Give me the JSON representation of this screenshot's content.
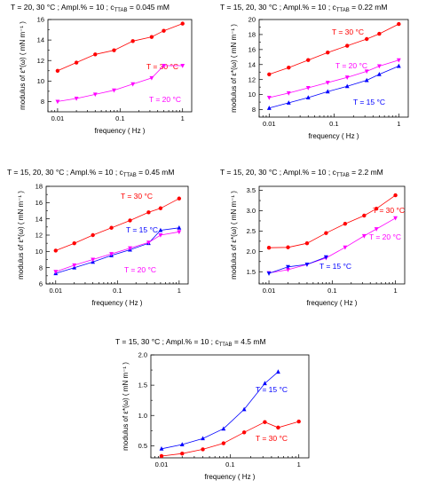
{
  "chart_data": [
    {
      "type": "line",
      "title": "T = 20, 30 °C ;    Ampl.% = 10 ;   c",
      "title_sub": "TTAB",
      "title_tail": " = 0.045 mM",
      "xlabel": "frequency  ( Hz )",
      "ylabel": "modulus of ε*(ω)  ( mN m⁻¹ )",
      "xscale": "log",
      "xlim": [
        0.007,
        1.4
      ],
      "ylim": [
        7,
        16
      ],
      "xticks": [
        0.01,
        0.1,
        1
      ],
      "xtick_labels": [
        "0.01",
        "0.1",
        "1"
      ],
      "yticks": [
        8,
        10,
        12,
        14,
        16
      ],
      "ytick_labels": [
        "8",
        "10",
        "12",
        "14",
        "16"
      ],
      "series": [
        {
          "name": "T = 30 °C",
          "color": "#ff0000",
          "marker": "circle",
          "x": [
            0.01,
            0.02,
            0.04,
            0.08,
            0.16,
            0.32,
            0.5,
            1.0
          ],
          "y": [
            11.0,
            11.8,
            12.6,
            13.0,
            13.9,
            14.3,
            14.9,
            15.6
          ]
        },
        {
          "name": "T = 20 °C",
          "color": "#ff00ff",
          "marker": "triangle-down",
          "x": [
            0.01,
            0.02,
            0.04,
            0.08,
            0.16,
            0.32,
            0.5,
            1.0
          ],
          "y": [
            8.0,
            8.3,
            8.7,
            9.1,
            9.7,
            10.3,
            11.5,
            11.5
          ]
        }
      ]
    },
    {
      "type": "line",
      "title": "T = 15, 20, 30 °C ;    Ampl.% = 10 ;    c",
      "title_sub": "TTAB",
      "title_tail": " = 0.22 mM",
      "xlabel": "frequency  ( Hz )",
      "ylabel": "modulus of ε*(ω)  ( mN m⁻¹ )",
      "xscale": "log",
      "xlim": [
        0.007,
        1.4
      ],
      "ylim": [
        7,
        20
      ],
      "xticks": [
        0.01,
        0.1,
        1
      ],
      "xtick_labels": [
        "0.01",
        "0.1",
        "1"
      ],
      "yticks": [
        8,
        10,
        12,
        14,
        16,
        18,
        20
      ],
      "ytick_labels": [
        "8",
        "10",
        "12",
        "14",
        "16",
        "18",
        "20"
      ],
      "series": [
        {
          "name": "T = 30 °C",
          "color": "#ff0000",
          "marker": "circle",
          "x": [
            0.01,
            0.02,
            0.04,
            0.08,
            0.16,
            0.32,
            0.5,
            1.0
          ],
          "y": [
            12.7,
            13.6,
            14.6,
            15.6,
            16.5,
            17.4,
            18.1,
            19.4
          ]
        },
        {
          "name": "T = 20 °C",
          "color": "#ff00ff",
          "marker": "triangle-down",
          "x": [
            0.01,
            0.02,
            0.04,
            0.08,
            0.16,
            0.32,
            0.5,
            1.0
          ],
          "y": [
            9.6,
            10.2,
            10.9,
            11.6,
            12.3,
            13.1,
            13.8,
            14.6
          ]
        },
        {
          "name": "T = 15 °C",
          "color": "#0000ff",
          "marker": "triangle-up",
          "x": [
            0.01,
            0.02,
            0.04,
            0.08,
            0.16,
            0.32,
            0.5,
            1.0
          ],
          "y": [
            8.2,
            8.9,
            9.6,
            10.4,
            11.1,
            11.9,
            12.7,
            13.8
          ]
        }
      ]
    },
    {
      "type": "line",
      "title": "T = 15, 20, 30 °C ;    Ampl.% = 10 ;    c",
      "title_sub": "TTAB",
      "title_tail": " = 0.45 mM",
      "xlabel": "frequency  ( Hz )",
      "ylabel": "modulus of ε*(ω)  ( mN m⁻¹ )",
      "xscale": "log",
      "xlim": [
        0.007,
        1.4
      ],
      "ylim": [
        6,
        18
      ],
      "xticks": [
        0.01,
        0.1,
        1
      ],
      "xtick_labels": [
        "0.01",
        "0.1",
        "1"
      ],
      "yticks": [
        6,
        8,
        10,
        12,
        14,
        16,
        18
      ],
      "ytick_labels": [
        "6",
        "8",
        "10",
        "12",
        "14",
        "16",
        "18"
      ],
      "series": [
        {
          "name": "T = 30 °C",
          "color": "#ff0000",
          "marker": "circle",
          "x": [
            0.01,
            0.02,
            0.04,
            0.08,
            0.16,
            0.32,
            0.5,
            1.0
          ],
          "y": [
            10.1,
            11.0,
            12.0,
            12.9,
            13.8,
            14.8,
            15.3,
            16.5
          ]
        },
        {
          "name": "T = 15 °C",
          "color": "#0000ff",
          "marker": "triangle-up",
          "x": [
            0.01,
            0.02,
            0.04,
            0.08,
            0.16,
            0.32,
            0.5,
            1.0
          ],
          "y": [
            7.3,
            8.0,
            8.7,
            9.5,
            10.2,
            11.0,
            12.6,
            12.9
          ]
        },
        {
          "name": "T = 20 °C",
          "color": "#ff00ff",
          "marker": "triangle-down",
          "x": [
            0.01,
            0.02,
            0.04,
            0.08,
            0.16,
            0.32,
            0.5,
            1.0
          ],
          "y": [
            7.5,
            8.3,
            9.0,
            9.7,
            10.4,
            11.1,
            12.0,
            12.4
          ]
        }
      ]
    },
    {
      "type": "line",
      "title": "T = 15, 20, 30 °C ;    Ampl.% = 10 ;    c",
      "title_sub": "TTAB",
      "title_tail": " = 2.2 mM",
      "xlabel": "frequency  ( Hz )",
      "ylabel": "modulus of ε*(ω)  ( mN m⁻¹ )",
      "xscale": "log",
      "xlim": [
        0.007,
        1.4
      ],
      "ylim": [
        1.2,
        3.6
      ],
      "xticks": [
        0.01,
        0.1,
        1
      ],
      "xtick_labels": [
        "0.01",
        "0.1",
        "1"
      ],
      "yticks": [
        1.5,
        2.0,
        2.5,
        3.0,
        3.5
      ],
      "ytick_labels": [
        "1.5",
        "2.0",
        "2.5",
        "3.0",
        "3.5"
      ],
      "series": [
        {
          "name": "T = 30 °C",
          "color": "#ff0000",
          "marker": "circle",
          "x": [
            0.01,
            0.02,
            0.04,
            0.08,
            0.16,
            0.32,
            0.5,
            1.0
          ],
          "y": [
            2.09,
            2.1,
            2.2,
            2.45,
            2.68,
            2.88,
            3.05,
            3.38
          ]
        },
        {
          "name": "T = 20 °C",
          "color": "#ff00ff",
          "marker": "triangle-down",
          "x": [
            0.01,
            0.02,
            0.04,
            0.08,
            0.16,
            0.32,
            0.5,
            1.0
          ],
          "y": [
            1.47,
            1.55,
            1.68,
            1.84,
            2.1,
            2.38,
            2.55,
            2.82
          ]
        },
        {
          "name": "T = 15 °C",
          "color": "#0000ff",
          "marker": "triangle-down",
          "x": [
            0.01,
            0.02,
            0.04,
            0.08
          ],
          "y": [
            1.46,
            1.62,
            1.68,
            1.86
          ]
        }
      ]
    },
    {
      "type": "line",
      "title": "T = 15, 30 °C ;    Ampl.% = 10 ;    c",
      "title_sub": "TTAB",
      "title_tail": " = 4.5 mM",
      "xlabel": "frequency  ( Hz )",
      "ylabel": "modulus of ε*(ω)  ( mN m⁻¹ )",
      "xscale": "log",
      "xlim": [
        0.007,
        1.4
      ],
      "ylim": [
        0.3,
        2.0
      ],
      "xticks": [
        0.01,
        0.1,
        1
      ],
      "xtick_labels": [
        "0.01",
        "0.1",
        "1"
      ],
      "yticks": [
        0.5,
        1.0,
        1.5,
        2.0
      ],
      "ytick_labels": [
        "0.5",
        "1.0",
        "1.5",
        "2.0"
      ],
      "series": [
        {
          "name": "T = 15 °C",
          "color": "#0000ff",
          "marker": "triangle-up",
          "x": [
            0.01,
            0.02,
            0.04,
            0.08,
            0.16,
            0.32,
            0.5
          ],
          "y": [
            0.45,
            0.52,
            0.62,
            0.78,
            1.1,
            1.53,
            1.72
          ]
        },
        {
          "name": "T = 30 °C",
          "color": "#ff0000",
          "marker": "circle",
          "x": [
            0.01,
            0.02,
            0.04,
            0.08,
            0.16,
            0.32,
            0.5,
            1.0
          ],
          "y": [
            0.33,
            0.37,
            0.44,
            0.54,
            0.72,
            0.89,
            0.8,
            0.9
          ]
        }
      ]
    }
  ]
}
